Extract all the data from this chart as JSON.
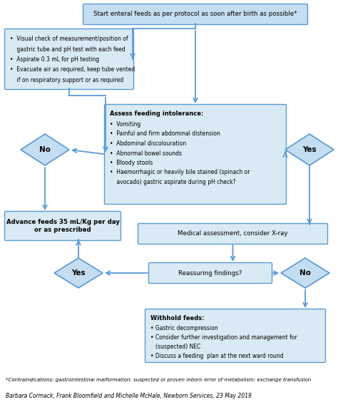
{
  "bg_color": "#ffffff",
  "box_fill": "#c5ddf0",
  "box_fill_light": "#d9eaf5",
  "box_edge": "#5b9bd5",
  "arrow_color": "#5b9bd5",
  "title": "Start enteral feeds as per protocol as soon after birth as possible*",
  "check_items": [
    "•  Visual check of measurement/position of",
    "    gastric tube and pH test with each feed",
    "•  Aspirate 0.3 mL for pH testing",
    "•  Evacuate air as required, keep tube vented",
    "    if on respiratory support or as required"
  ],
  "assess_title": "Assess feeding intolerance:",
  "assess_items": [
    "•  Vomiting",
    "•  Painful and firm abdominal distension",
    "•  Abdominal discolouration",
    "•  Abnormal bowel sounds",
    "•  Bloody stools",
    "•  Haemorrhagic or heavily bile stained (spinach or",
    "    avocado) gastric aspirate during pH check?"
  ],
  "adv_text": "Advance feeds 35 mL/Kg per day\nor as prescribed",
  "med_text": "Medical assessment, consider X-ray",
  "reass_text": "Reassuring findings?",
  "withhold_title": "Withhold feeds:",
  "withhold_items": [
    "• Gastric decompression",
    "• Consider further investigation and management for",
    "   (suspected) NEC",
    "• Discuss a feeding  plan at the next ward round"
  ],
  "footnote1": "*Contraindications: gastrointestinal malformation; suspected or proven inborn error of metabolism; exchange transfusion",
  "footnote2": "Barbara Cormack, Frank Bloomfield and Michelle McHale, Newborn Services, 23 May 2019"
}
